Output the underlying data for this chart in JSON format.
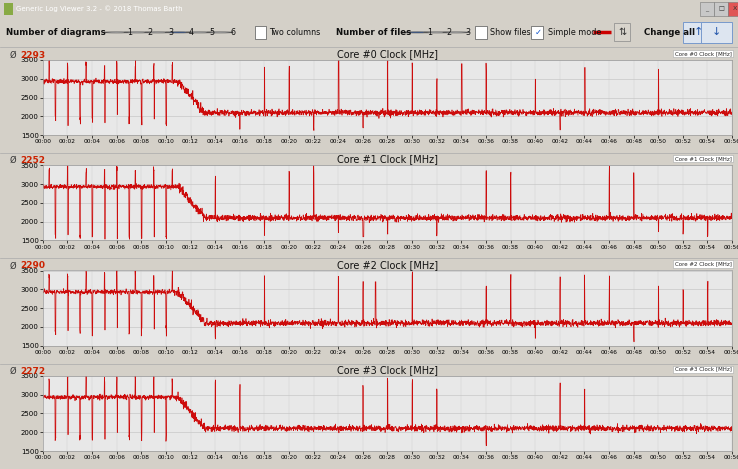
{
  "title_bar": "Generic Log Viewer 3.2 - © 2018 Thomas Barth",
  "panels": [
    {
      "title": "Core #0 Clock [MHz]",
      "avg": "2293",
      "label": "Core #0 Clock [MHz]"
    },
    {
      "title": "Core #1 Clock [MHz]",
      "avg": "2252",
      "label": "Core #1 Clock [MHz]"
    },
    {
      "title": "Core #2 Clock [MHz]",
      "avg": "2290",
      "label": "Core #2 Clock [MHz]"
    },
    {
      "title": "Core #3 Clock [MHz]",
      "avg": "2272",
      "label": "Core #3 Clock [MHz]"
    }
  ],
  "ylim": [
    1500,
    3500
  ],
  "yticks": [
    1500,
    2000,
    2500,
    3000,
    3500
  ],
  "time_total_minutes": 56,
  "bg_outer": "#d4d0c8",
  "bg_window": "#f0f0f0",
  "plot_bg": "#e8e8e8",
  "line_color": "#cc0000",
  "grid_color": "#c0c0c0",
  "title_bar_bg": "#5b8abd",
  "toolbar_bg": "#dce3ec",
  "panel_header_bg": "#dce3ec",
  "avg_color": "#cc2200"
}
